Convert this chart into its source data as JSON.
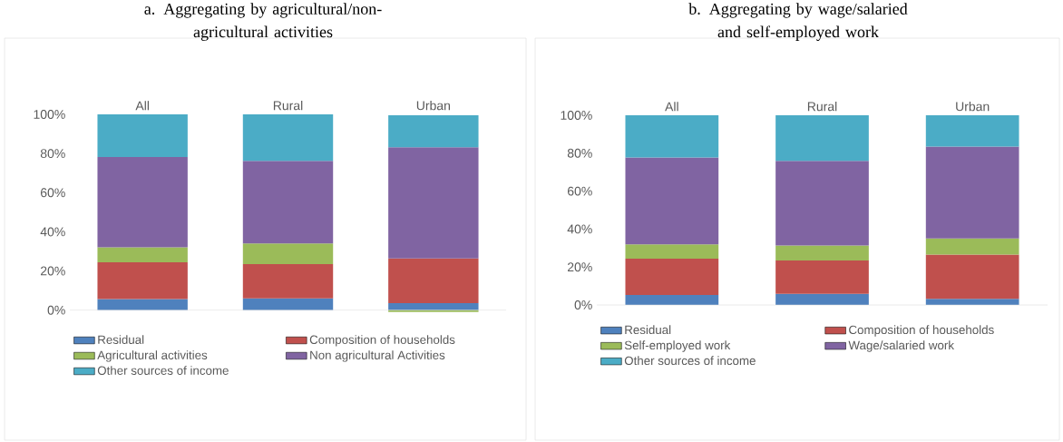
{
  "chart_data": [
    {
      "type": "bar",
      "stacked": true,
      "title": "a. Aggregating by agricultural/non-agricultural activities",
      "categories": [
        "All",
        "Rural",
        "Urban"
      ],
      "ylim": [
        -2,
        100
      ],
      "yticks": [
        {
          "value": 0,
          "label": "0%"
        },
        {
          "value": 20,
          "label": "20%"
        },
        {
          "value": 40,
          "label": "40%"
        },
        {
          "value": 60,
          "label": "60%"
        },
        {
          "value": 80,
          "label": "80%"
        },
        {
          "value": 100,
          "label": "100%"
        }
      ],
      "legend": "bottom",
      "series": [
        {
          "name": "Residual",
          "color": "#4f81bd",
          "values": [
            5.7,
            6.0,
            3.6
          ]
        },
        {
          "name": "Composition of households",
          "color": "#c0504d",
          "values": [
            18.7,
            17.5,
            22.8
          ]
        },
        {
          "name": "Agricultural activities",
          "color": "#9bbb59",
          "values": [
            7.7,
            10.6,
            -0.9
          ]
        },
        {
          "name": "Non agricultural Activities",
          "color": "#8064a2",
          "values": [
            46.1,
            42.1,
            56.8
          ]
        },
        {
          "name": "Other sources of income",
          "color": "#4bacc6",
          "values": [
            21.8,
            23.8,
            16.3
          ]
        }
      ]
    },
    {
      "type": "bar",
      "stacked": true,
      "title": "b. Aggregating by wage/salaried and self-employed work",
      "categories": [
        "All",
        "Rural",
        "Urban"
      ],
      "ylim": [
        0,
        100
      ],
      "yticks": [
        {
          "value": 0,
          "label": "0%"
        },
        {
          "value": 20,
          "label": "20%"
        },
        {
          "value": 40,
          "label": "40%"
        },
        {
          "value": 60,
          "label": "60%"
        },
        {
          "value": 80,
          "label": "80%"
        },
        {
          "value": 100,
          "label": "100%"
        }
      ],
      "legend": "bottom",
      "series": [
        {
          "name": "Residual",
          "color": "#4f81bd",
          "values": [
            5.3,
            5.9,
            3.2
          ]
        },
        {
          "name": "Composition of households",
          "color": "#c0504d",
          "values": [
            19.1,
            17.6,
            23.3
          ]
        },
        {
          "name": "Self-employed work",
          "color": "#9bbb59",
          "values": [
            7.5,
            7.8,
            8.6
          ]
        },
        {
          "name": "Wage/salaried work",
          "color": "#8064a2",
          "values": [
            45.9,
            44.7,
            48.4
          ]
        },
        {
          "name": "Other sources of income",
          "color": "#4bacc6",
          "values": [
            22.2,
            24.0,
            16.5
          ]
        }
      ]
    }
  ]
}
